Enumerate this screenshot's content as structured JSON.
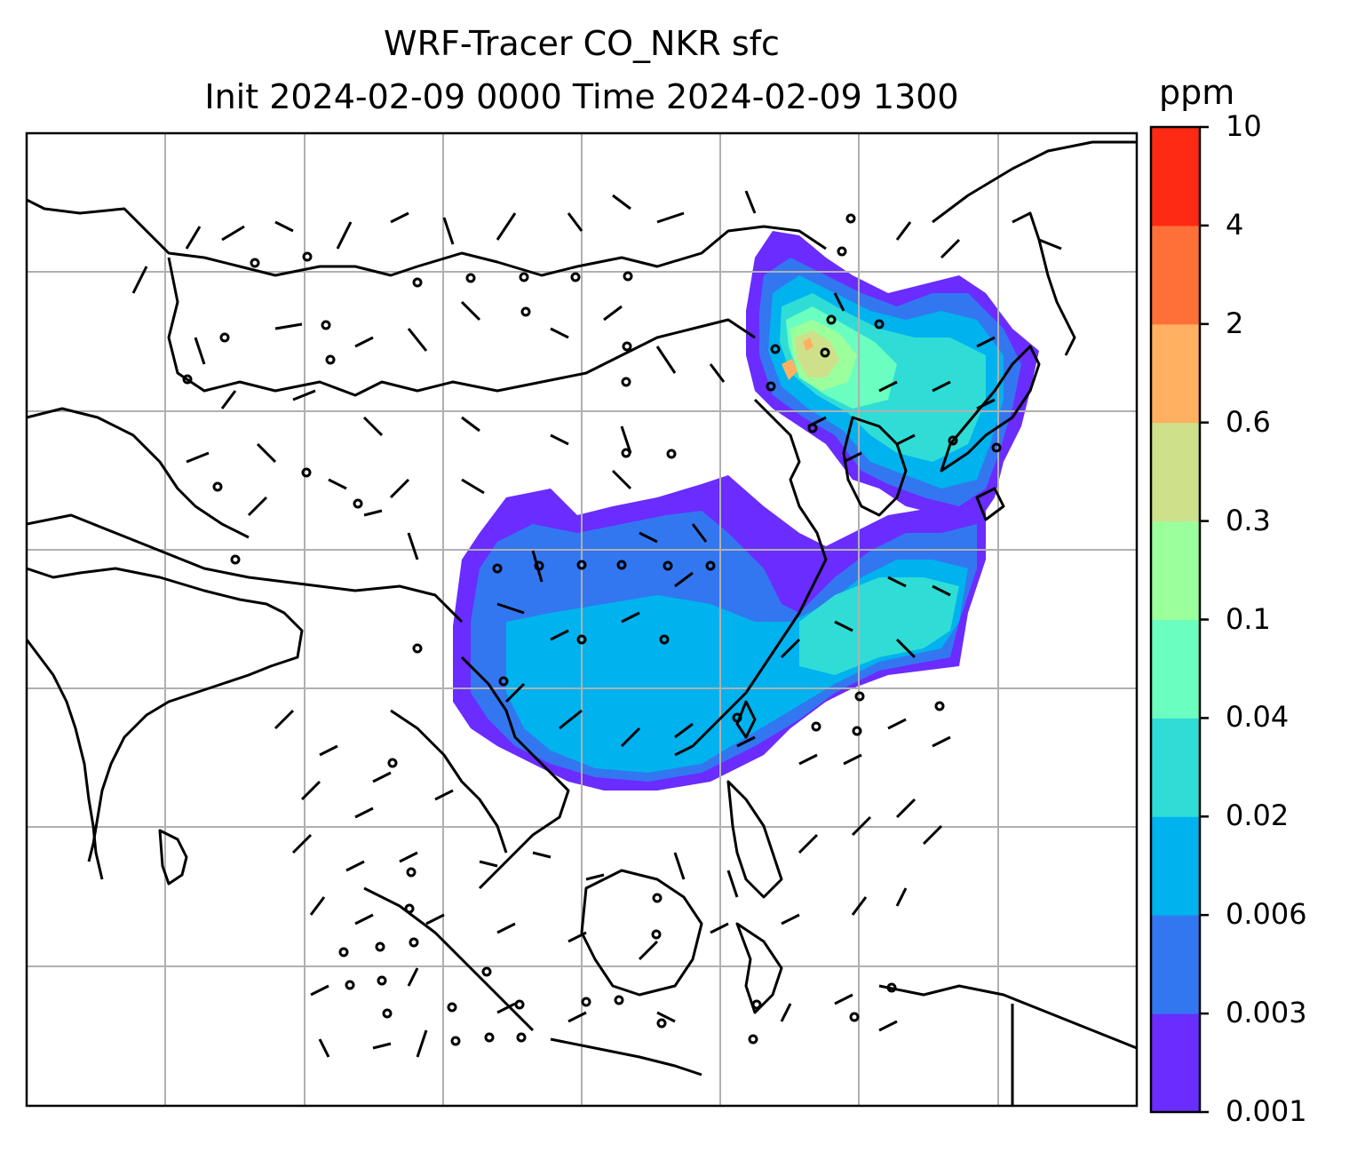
{
  "title": {
    "line1": "WRF-Tracer CO_NKR sfc",
    "line2": "Init 2024-02-09 0000 Time 2024-02-09 1300"
  },
  "colorbar": {
    "unit": "ppm",
    "ticks": [
      "10",
      "4",
      "2",
      "0.6",
      "0.3",
      "0.1",
      "0.04",
      "0.02",
      "0.006",
      "0.003",
      "0.001"
    ],
    "colors": [
      "#6a2cff",
      "#3377f0",
      "#00b2ee",
      "#2fddd6",
      "#6affc0",
      "#9bff9b",
      "#cfe08a",
      "#ffb060",
      "#ff7038",
      "#ff2a14"
    ]
  },
  "map": {
    "field": "CO_NKR surface tracer concentration",
    "grid": "on",
    "wind_barbs": "on"
  }
}
